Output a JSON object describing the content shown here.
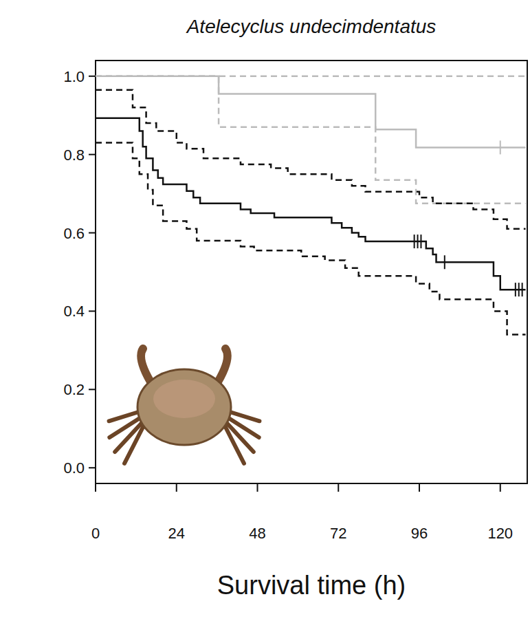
{
  "chart_data": {
    "type": "line",
    "title": "Atelecyclus undecimdentatus",
    "x_label": "Survival time (h)",
    "xlim": [
      0,
      128
    ],
    "ylim": [
      -0.04,
      1.04
    ],
    "xticks": [
      0,
      24,
      48,
      72,
      96,
      120
    ],
    "yticks": [
      {
        "value": 0,
        "label": "0.0"
      },
      {
        "value": 0.2,
        "label": "0.2"
      },
      {
        "value": 0.4,
        "label": "0.4"
      },
      {
        "value": 0.6,
        "label": "0.6"
      },
      {
        "value": 0.8,
        "label": "0.8"
      },
      {
        "value": 1,
        "label": "1.0"
      }
    ],
    "grid": false,
    "series": [
      {
        "color": "#bbbbbb",
        "line_style": "dashed",
        "x": [
          0,
          127.5
        ],
        "values": [
          1,
          1
        ]
      },
      {
        "color": "#bbbbbb",
        "line_style": "dashed",
        "x": [
          0,
          36.5,
          83,
          95,
          127.5
        ],
        "values": [
          1,
          0.87,
          0.735,
          0.675,
          0.675
        ]
      },
      {
        "color": "#bbbbbb",
        "line_style": "solid",
        "x": [
          0,
          36.5,
          83,
          95,
          127.5
        ],
        "values": [
          1,
          0.955,
          0.864,
          0.818,
          0.818
        ],
        "censored": [
          120
        ]
      },
      {
        "color": "#111111",
        "line_style": "dashed",
        "x": [
          0,
          11,
          15,
          18,
          24,
          27,
          32,
          43,
          52,
          57,
          70,
          76,
          80,
          96,
          100,
          112,
          118,
          122,
          127.5
        ],
        "values": [
          0.965,
          0.92,
          0.88,
          0.86,
          0.83,
          0.815,
          0.79,
          0.775,
          0.765,
          0.75,
          0.735,
          0.72,
          0.705,
          0.69,
          0.675,
          0.66,
          0.635,
          0.61,
          0.61
        ]
      },
      {
        "color": "#111111",
        "line_style": "dashed",
        "x": [
          0,
          11,
          13,
          15.5,
          17,
          20,
          27,
          30,
          43,
          47,
          61,
          68,
          74,
          78,
          95,
          99,
          102,
          118,
          122,
          127.5
        ],
        "values": [
          0.83,
          0.79,
          0.75,
          0.71,
          0.67,
          0.63,
          0.61,
          0.58,
          0.565,
          0.555,
          0.54,
          0.53,
          0.51,
          0.49,
          0.47,
          0.45,
          0.43,
          0.4,
          0.34,
          0.34
        ]
      },
      {
        "color": "#111111",
        "line_style": "solid",
        "x": [
          0,
          13,
          14,
          15,
          17,
          18.5,
          20,
          27,
          29,
          31,
          43,
          46,
          53,
          70,
          73,
          76,
          78,
          80,
          98,
          100,
          101,
          118,
          120,
          127.5
        ],
        "values": [
          0.893,
          0.86,
          0.82,
          0.79,
          0.76,
          0.74,
          0.724,
          0.707,
          0.69,
          0.675,
          0.66,
          0.65,
          0.639,
          0.625,
          0.613,
          0.6,
          0.59,
          0.578,
          0.56,
          0.545,
          0.525,
          0.49,
          0.455,
          0.455
        ],
        "censored": [
          94.5,
          95.5,
          96.5,
          103.5,
          124.5,
          125.5,
          126.5
        ]
      }
    ]
  }
}
